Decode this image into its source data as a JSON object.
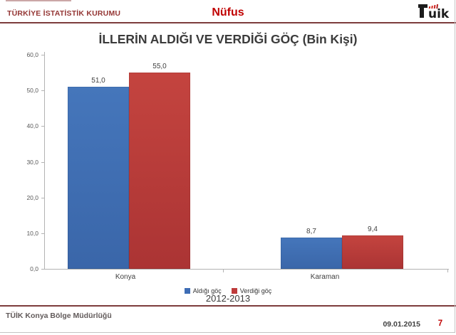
{
  "header": {
    "org": "TÜRKİYE İSTATİSTİK KURUMU",
    "section": "Nüfus",
    "logo_text": "TÜİK"
  },
  "title": "İLLERİN ALDIĞI VE VERDİĞİ GÖÇ (Bin Kişi)",
  "chart_data": {
    "type": "bar",
    "categories": [
      "Konya",
      "Karaman"
    ],
    "series": [
      {
        "name": "Aldığı göç",
        "color": "blue",
        "values": [
          51.0,
          8.7
        ],
        "labels": [
          "51,0",
          "8,7"
        ]
      },
      {
        "name": "Verdiği göç",
        "color": "red",
        "values": [
          55.0,
          9.4
        ],
        "labels": [
          "55,0",
          "9,4"
        ]
      }
    ],
    "ylim": [
      0,
      60
    ],
    "yticks": [
      "60,0",
      "50,0",
      "40,0",
      "30,0",
      "20,0",
      "10,0",
      "0,0"
    ],
    "grid": false,
    "legend_position": "bottom",
    "period": "2012-2013"
  },
  "footer": {
    "left": "TÜİK Konya Bölge Müdürlüğü",
    "date": "09.01.2015",
    "page": "7"
  },
  "colors": {
    "bar_blue": "#3E6DB5",
    "bar_red": "#BE3B3B",
    "accent_red": "#C00000",
    "rule_maroon": "#7D3C3C"
  }
}
